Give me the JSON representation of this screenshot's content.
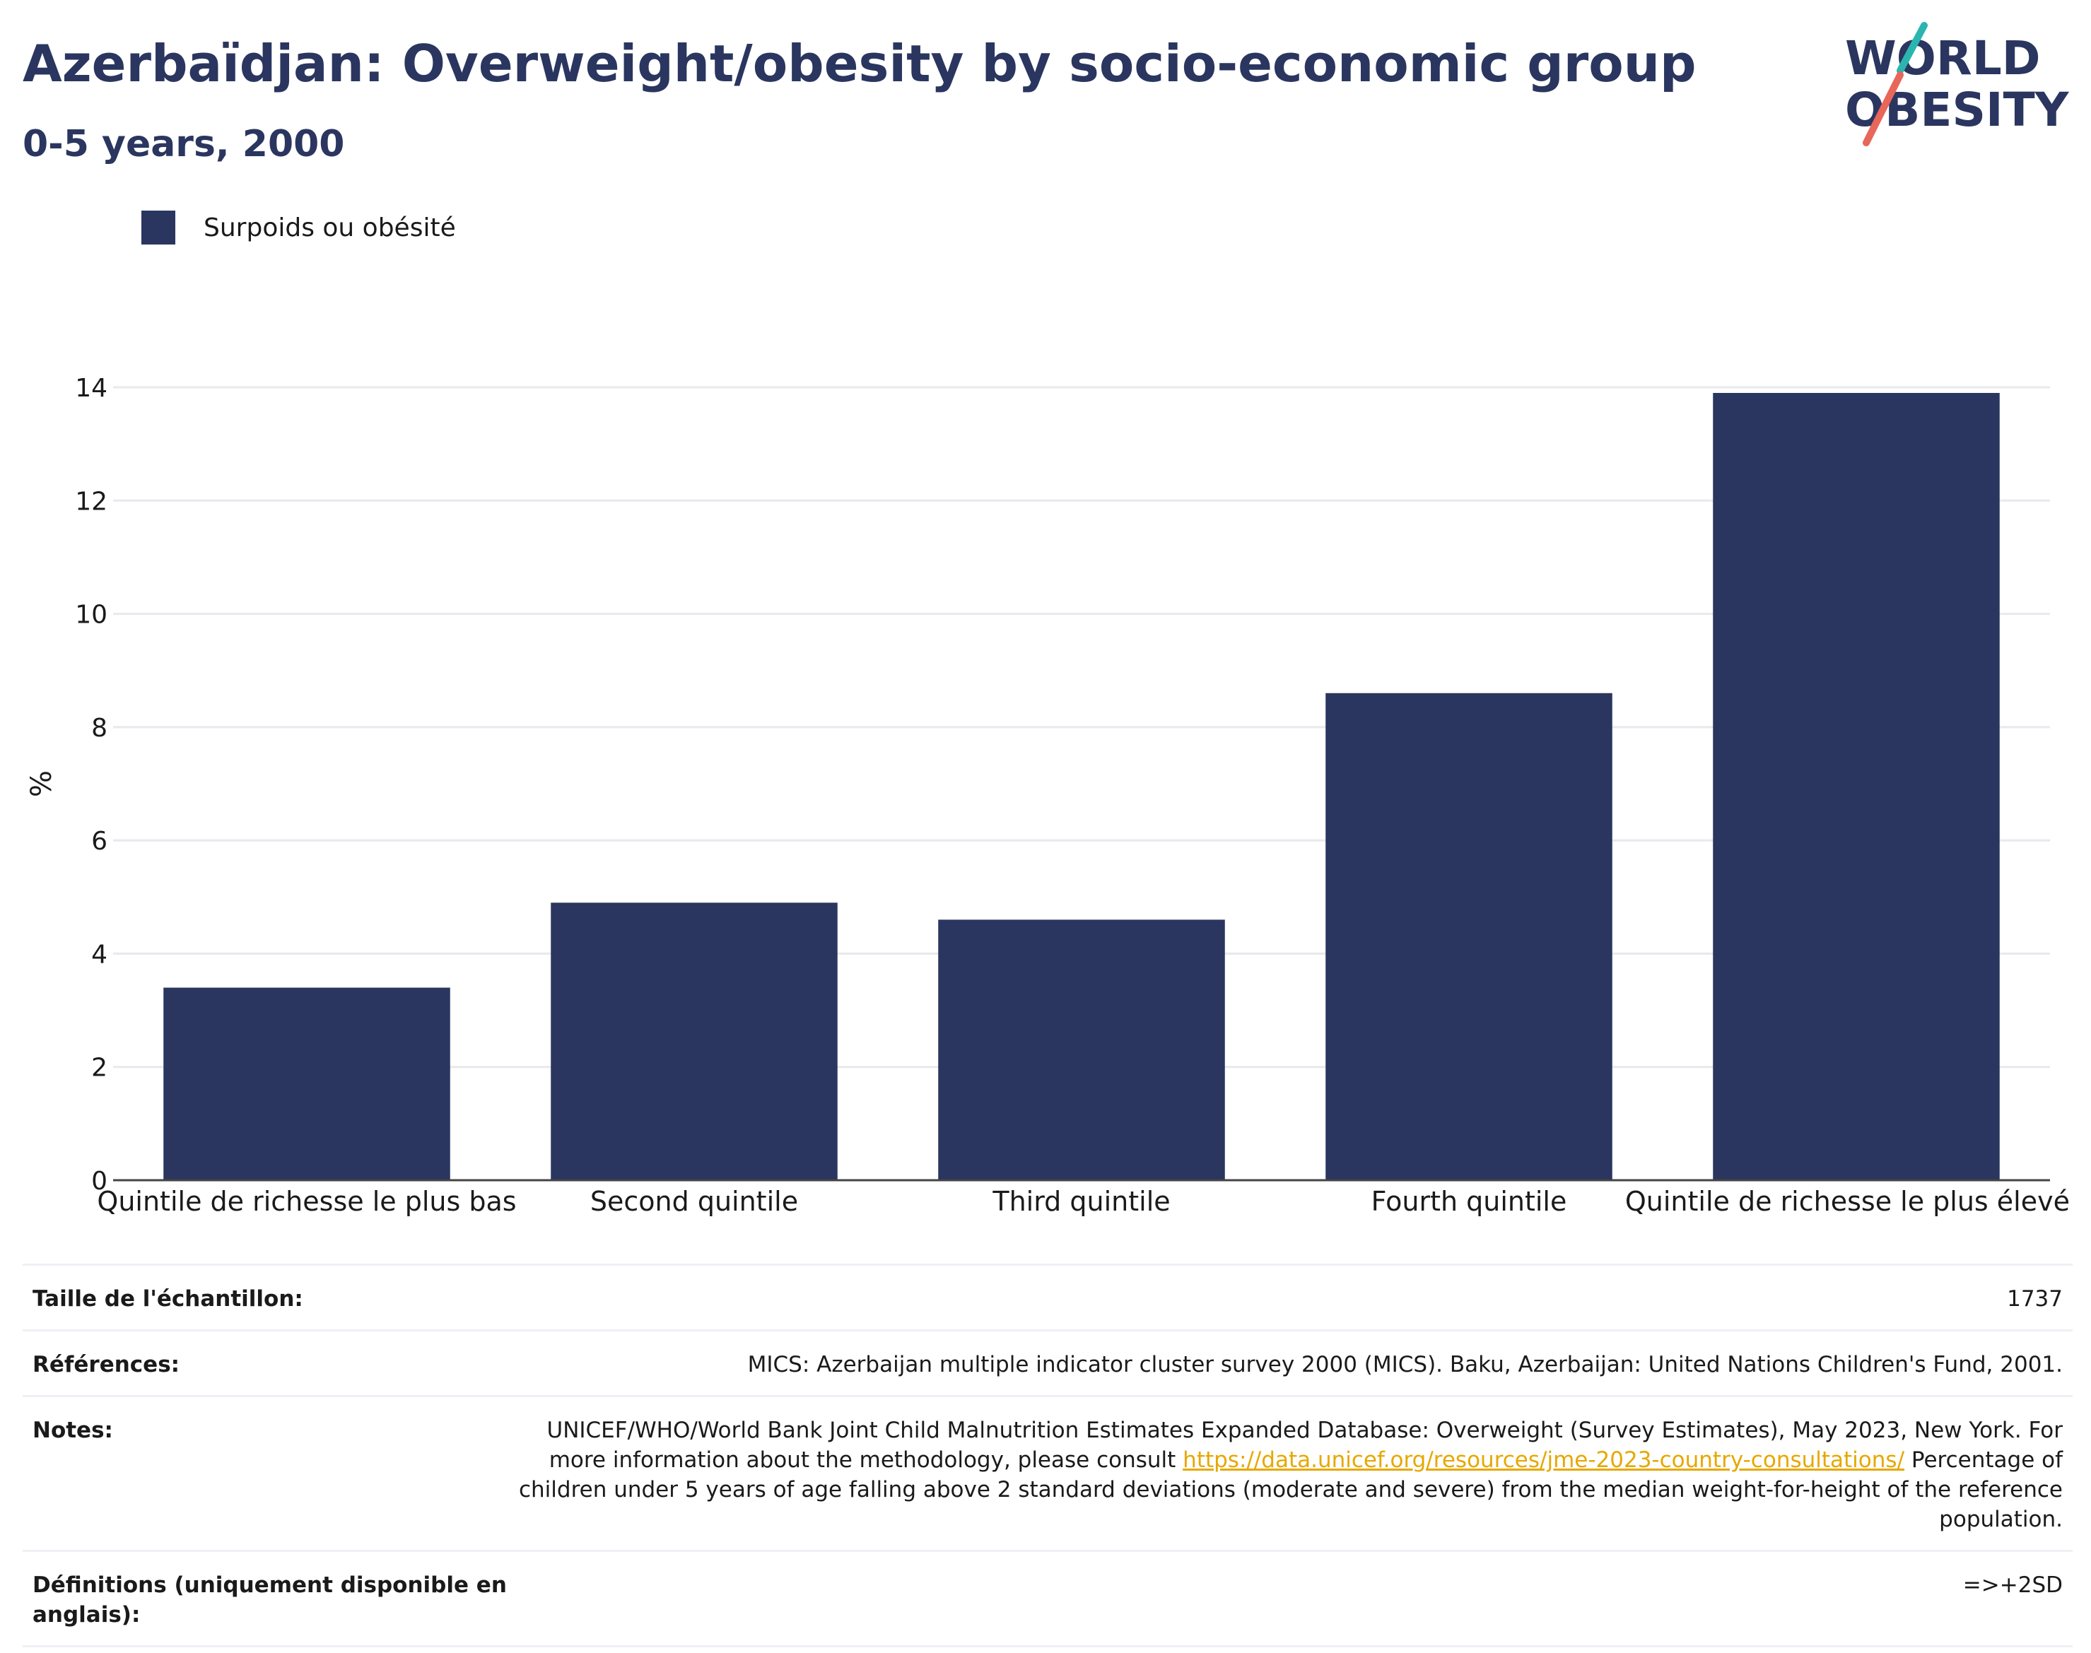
{
  "header": {
    "title": "Azerbaïdjan: Overweight/obesity by socio-economic group",
    "subtitle": "0-5 years, 2000"
  },
  "logo": {
    "line1": "WORLD",
    "line2": "OBESITY"
  },
  "colors": {
    "bar": "#2a365f",
    "accent_teal": "#2bb5b0",
    "accent_red": "#e8665a",
    "grid": "#e8e8ee",
    "link": "#e6a800"
  },
  "chart_data": {
    "type": "bar",
    "categories": [
      "Quintile de richesse le plus bas",
      "Second quintile",
      "Third quintile",
      "Fourth quintile",
      "Quintile de richesse le plus élevé"
    ],
    "series": [
      {
        "name": "Surpoids ou obésité",
        "values": [
          3.4,
          4.9,
          4.6,
          8.6,
          13.9
        ]
      }
    ],
    "ylabel": "%",
    "ylim": [
      0,
      14
    ],
    "yticks": [
      0,
      2,
      4,
      6,
      8,
      10,
      12,
      14
    ],
    "grid": true,
    "legend": "top-left"
  },
  "meta": {
    "sample_size": {
      "label": "Taille de l'échantillon:",
      "value": "1737"
    },
    "references": {
      "label": "Références:",
      "value": "MICS: Azerbaijan multiple indicator cluster survey 2000 (MICS). Baku, Azerbaijan: United Nations Children's Fund, 2001."
    },
    "notes": {
      "label": "Notes:",
      "text1": "UNICEF/WHO/World Bank Joint Child Malnutrition Estimates Expanded Database: Overweight (Survey Estimates), May 2023, New York. For more information about the methodology, please consult ",
      "link": "https://data.unicef.org/resources/jme-2023-country-consultations/",
      "text2": " Percentage of children under 5 years of age falling above 2 standard deviations (moderate and severe) from the median weight-for-height of the reference population."
    },
    "definitions": {
      "label": "Définitions (uniquement disponible en anglais):",
      "value": "=>+2SD"
    }
  }
}
